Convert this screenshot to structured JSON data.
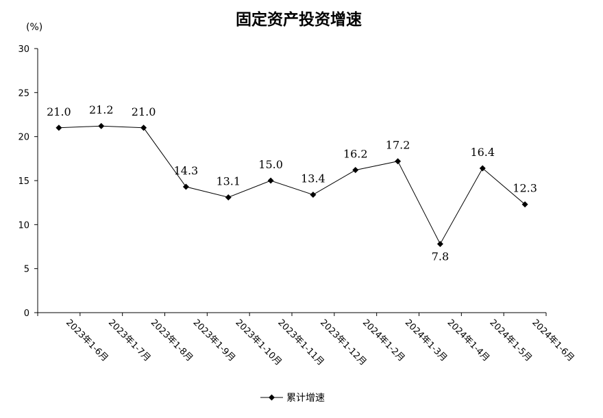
{
  "chart_data": {
    "type": "line",
    "title": "固定资产投资增速",
    "ylabel": "(%)",
    "xlabel": "",
    "ylim": [
      0,
      30
    ],
    "yticks": [
      0,
      5,
      10,
      15,
      20,
      25,
      30
    ],
    "categories": [
      "2023年1-6月",
      "2023年1-7月",
      "2023年1-8月",
      "2023年1-9月",
      "2023年1-10月",
      "2023年1-11月",
      "2023年1-12月",
      "2024年1-2月",
      "2024年1-3月",
      "2024年1-4月",
      "2024年1-5月",
      "2024年1-6月"
    ],
    "series": [
      {
        "name": "累计增速",
        "values": [
          21.0,
          21.2,
          21.0,
          14.3,
          13.1,
          15.0,
          13.4,
          16.2,
          17.2,
          7.8,
          16.4,
          12.3
        ],
        "labels": [
          "21.0",
          "21.2",
          "21.0",
          "14.3",
          "13.1",
          "15.0",
          "13.4",
          "16.2",
          "17.2",
          "7.8",
          "16.4",
          "12.3"
        ],
        "color": "#000000",
        "marker": "diamond"
      }
    ],
    "grid": false,
    "legend_position": "bottom-center"
  }
}
